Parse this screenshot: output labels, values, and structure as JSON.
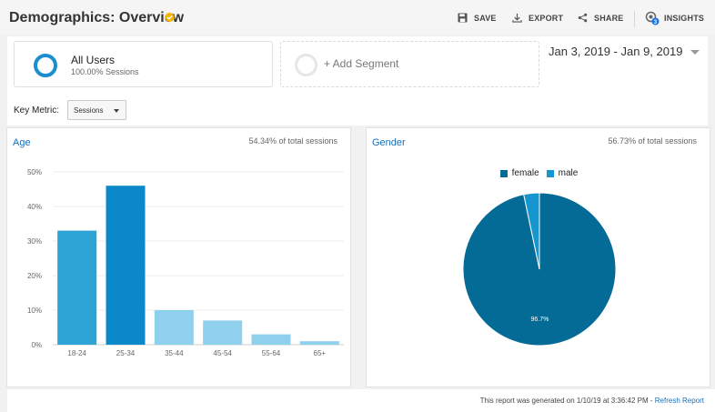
{
  "header": {
    "title": "Demographics: Overview",
    "actions": {
      "save": "SAVE",
      "export": "EXPORT",
      "share": "SHARE",
      "insights": "INSIGHTS",
      "insights_badge": "3"
    }
  },
  "segments": {
    "all_users": {
      "name": "All Users",
      "sub": "100.00% Sessions"
    },
    "add_segment": "+ Add Segment"
  },
  "date_range": "Jan 3, 2019 - Jan 9, 2019",
  "key_metric": {
    "label": "Key Metric:",
    "value": "Sessions"
  },
  "age_panel": {
    "title": "Age",
    "share": "54.34% of total sessions"
  },
  "gender_panel": {
    "title": "Gender",
    "share": "56.73% of total sessions"
  },
  "footer": {
    "text": "This report was generated on 1/10/19 at 3:36:42 PM - ",
    "link": "Refresh Report"
  },
  "colors": {
    "accent": "#1c6fb5",
    "bar_dark": "#0a88c9",
    "bar_mid": "#2ea3d6",
    "bar_light": "#8fd0ec",
    "female": "#036b95",
    "male": "#1596cf",
    "verified": "#f5b400"
  },
  "chart_data": [
    {
      "type": "bar",
      "categories": [
        "18-24",
        "25-34",
        "35-44",
        "45-54",
        "55-64",
        "65+"
      ],
      "values": [
        33,
        46,
        10,
        7,
        3,
        1
      ],
      "ylim": [
        0,
        50
      ],
      "yticks": [
        "0%",
        "10%",
        "20%",
        "30%",
        "40%",
        "50%"
      ],
      "ytick_values": [
        0,
        10,
        20,
        30,
        40,
        50
      ],
      "bar_shades": [
        "mid",
        "dark",
        "light",
        "light",
        "light",
        "light"
      ],
      "grid": true
    },
    {
      "type": "pie",
      "labels": [
        "female",
        "male"
      ],
      "values": [
        96.7,
        3.3
      ],
      "slice_labels": [
        "96.7%",
        ""
      ],
      "legend": "top"
    }
  ]
}
